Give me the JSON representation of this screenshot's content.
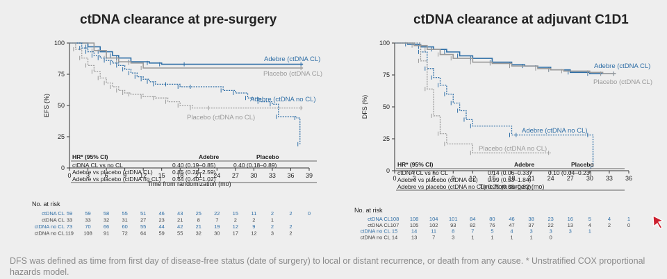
{
  "colors": {
    "adebre": "#2e6ea6",
    "placebo": "#9a9a9a",
    "text": "#222222",
    "background": "#eeeeee",
    "axis": "#333333",
    "footnote": "#8a8a8a",
    "cursor": "#cc1f2e"
  },
  "footnote": "DFS was defined as time from first day of disease-free status (date of surgery) to local or distant recurrence, or death from any cause. * Unstratified COX proportional hazards model.",
  "chart_data": [
    {
      "type": "line",
      "title": "ctDNA clearance at pre-surgery",
      "xlabel": "Time from randomization (mo)",
      "ylabel": "EFS (%)",
      "xlim": [
        0,
        39
      ],
      "ylim": [
        0,
        100
      ],
      "xticks": [
        0,
        3,
        6,
        9,
        12,
        15,
        18,
        21,
        24,
        27,
        30,
        33,
        36,
        39
      ],
      "yticks": [
        0,
        25,
        50,
        75,
        100
      ],
      "series": [
        {
          "name": "Adebre (ctDNA CL)",
          "style": "solid",
          "color": "#2e6ea6",
          "x": [
            0,
            3,
            5,
            7,
            8,
            10,
            13,
            15,
            19,
            38
          ],
          "y": [
            100,
            97,
            93,
            90,
            88,
            85,
            84,
            83,
            83,
            83
          ]
        },
        {
          "name": "Placebo (ctDNA CL)",
          "style": "solid",
          "color": "#9a9a9a",
          "x": [
            0,
            4,
            6,
            8,
            10,
            12,
            38
          ],
          "y": [
            100,
            94,
            88,
            85,
            84,
            80,
            80
          ]
        },
        {
          "name": "Adebre (ctDNA no CL)",
          "style": "dotted",
          "color": "#2e6ea6",
          "x": [
            0,
            2,
            3,
            4,
            5,
            6,
            7,
            8,
            9,
            10,
            11,
            12,
            13,
            14,
            16,
            18,
            20,
            25,
            27,
            29,
            31,
            33,
            34,
            37,
            37.5
          ],
          "y": [
            100,
            96,
            93,
            90,
            88,
            86,
            84,
            82,
            79,
            76,
            73,
            71,
            69,
            67,
            67,
            65,
            65,
            62,
            60,
            56,
            53,
            51,
            41,
            40,
            19
          ]
        },
        {
          "name": "Placebo (ctDNA no CL)",
          "style": "dotted",
          "color": "#9a9a9a",
          "x": [
            0,
            1,
            2,
            3,
            4,
            5,
            6,
            7,
            8,
            9,
            10,
            12,
            14,
            16,
            18,
            20,
            23,
            38
          ],
          "y": [
            100,
            95,
            88,
            82,
            77,
            72,
            68,
            65,
            62,
            60,
            59,
            57,
            56,
            53,
            50,
            48,
            48,
            48
          ]
        }
      ],
      "legend_position": "right-of-curves",
      "hr_table": {
        "headers": [
          "HR* (95% CI)",
          "Adebre",
          "Placebo"
        ],
        "rows": [
          [
            "ctDNA CL vs no CL",
            "0.40 (0.19–0.85)",
            "0.40 (0.18–0.89)"
          ],
          [
            "Adebre vs placebo (ctDNA CL)",
            "0.85 (0.28–2.59)",
            ""
          ],
          [
            "Adebre vs placebo (ctDNA no CL)",
            "0.64 (0.40–1.02)",
            ""
          ]
        ]
      },
      "risk_table": {
        "title": "No. at risk",
        "rows": [
          {
            "label": "ctDNA CL",
            "color": "#2e6ea6",
            "values": [
              "59",
              "59",
              "58",
              "55",
              "51",
              "46",
              "43",
              "25",
              "22",
              "15",
              "11",
              "2",
              "2",
              "0"
            ]
          },
          {
            "label": "ctDNA CL",
            "color": "#444444",
            "values": [
              "33",
              "33",
              "32",
              "31",
              "27",
              "23",
              "21",
              "8",
              "7",
              "2",
              "2",
              "1",
              "",
              ""
            ]
          },
          {
            "label": "ctDNA no CL",
            "color": "#2e6ea6",
            "values": [
              "73",
              "70",
              "66",
              "60",
              "55",
              "44",
              "42",
              "21",
              "19",
              "12",
              "9",
              "2",
              "2",
              ""
            ]
          },
          {
            "label": "ctDNA no CL",
            "color": "#444444",
            "values": [
              "119",
              "108",
              "91",
              "72",
              "64",
              "59",
              "55",
              "32",
              "30",
              "17",
              "12",
              "3",
              "2",
              ""
            ]
          }
        ]
      }
    },
    {
      "type": "line",
      "title": "ctDNA clearance at adjuvant C1D1",
      "xlabel": "Time from surgery (mo)",
      "ylabel": "DFS (%)",
      "xlim": [
        0,
        36
      ],
      "ylim": [
        0,
        100
      ],
      "xticks": [
        0,
        3,
        6,
        9,
        12,
        15,
        18,
        21,
        24,
        27,
        30,
        33,
        36
      ],
      "yticks": [
        0,
        25,
        50,
        75,
        100
      ],
      "series": [
        {
          "name": "Adebre (ctDNA CL)",
          "style": "solid",
          "color": "#2e6ea6",
          "x": [
            0,
            2,
            4,
            6,
            8,
            10,
            12,
            15,
            18,
            20,
            22,
            24,
            27,
            30,
            32,
            34
          ],
          "y": [
            100,
            99,
            97,
            95,
            93,
            90,
            88,
            85,
            83,
            82,
            81,
            79,
            77,
            76,
            76,
            76
          ]
        },
        {
          "name": "Placebo (ctDNA CL)",
          "style": "solid",
          "color": "#9a9a9a",
          "x": [
            0,
            3,
            5,
            7,
            9,
            12,
            15,
            18,
            22,
            24,
            26,
            30,
            32,
            34
          ],
          "y": [
            100,
            98,
            95,
            91,
            88,
            85,
            84,
            82,
            80,
            79,
            78,
            77,
            76,
            76
          ]
        },
        {
          "name": "Adebre (ctDNA no CL)",
          "style": "dotted",
          "color": "#2e6ea6",
          "x": [
            0,
            4,
            5,
            6,
            7,
            8,
            9,
            10,
            11,
            12,
            18,
            19,
            30,
            30.5
          ],
          "y": [
            100,
            93,
            80,
            73,
            67,
            60,
            53,
            47,
            40,
            35,
            28,
            28,
            28,
            3
          ]
        },
        {
          "name": "Placebo (ctDNA no CL)",
          "style": "dotted",
          "color": "#9a9a9a",
          "x": [
            0,
            4,
            5,
            6,
            7,
            8,
            12,
            24
          ],
          "y": [
            100,
            86,
            64,
            43,
            29,
            21,
            14,
            14
          ]
        }
      ],
      "legend_position": "right-of-curves",
      "hr_table": {
        "headers": [
          "HR* (95% CI)",
          "Adebre",
          "Placebo"
        ],
        "rows": [
          [
            "ctDNA CL vs no CL",
            "0.14 (0.06–0.33)",
            "0.10 (0.04–0.23)"
          ],
          [
            "Adebre vs placebo (ctDNA CL)",
            "0.99 (0.53–1.84)",
            ""
          ],
          [
            "Adebre vs placebo (ctDNA no CL)",
            "0.25 (0.08–0.82)",
            ""
          ]
        ]
      },
      "risk_table": {
        "title": "No. at risk",
        "rows": [
          {
            "label": "ctDNA CL",
            "color": "#2e6ea6",
            "values": [
              "108",
              "108",
              "104",
              "101",
              "84",
              "80",
              "46",
              "38",
              "23",
              "16",
              "5",
              "4",
              "1"
            ]
          },
          {
            "label": "ctDNA CL",
            "color": "#444444",
            "values": [
              "107",
              "105",
              "102",
              "93",
              "82",
              "76",
              "47",
              "37",
              "22",
              "13",
              "4",
              "2",
              "0"
            ]
          },
          {
            "label": "ctDNA no CL",
            "color": "#2e6ea6",
            "values": [
              "15",
              "14",
              "11",
              "8",
              "7",
              "5",
              "4",
              "3",
              "3",
              "3",
              "1",
              "",
              ""
            ]
          },
          {
            "label": "ctDNA no CL",
            "color": "#444444",
            "values": [
              "14",
              "13",
              "7",
              "3",
              "1",
              "1",
              "1",
              "1",
              "0",
              "",
              "",
              "",
              ""
            ]
          }
        ]
      }
    }
  ]
}
